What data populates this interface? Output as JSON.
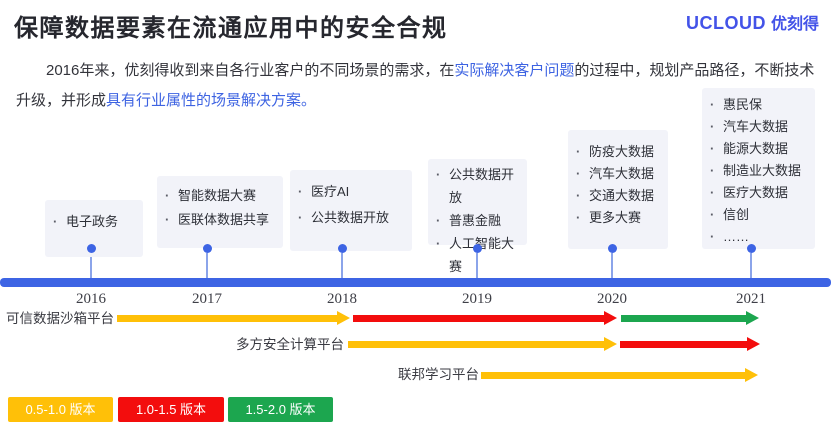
{
  "slide": {
    "title": "保障数据要素在流通应用中的安全合规",
    "logo": {
      "brand": "UCLOUD",
      "brand_cn": "优刻得"
    }
  },
  "intro": {
    "parts": [
      {
        "text": "2016年来，优刻得收到来自各行业客户的不同场景的需求，在",
        "highlight": false
      },
      {
        "text": "实际解决客户问题",
        "highlight": true
      },
      {
        "text": "的过程中，规划产品路径，不断技术升级，并形成",
        "highlight": false
      },
      {
        "text": "具有行业属性的场景解决方案。",
        "highlight": true
      }
    ]
  },
  "timeline": {
    "years": [
      {
        "year": "2016",
        "items": [
          "电子政务"
        ]
      },
      {
        "year": "2017",
        "items": [
          "智能数据大赛",
          "医联体数据共享"
        ]
      },
      {
        "year": "2018",
        "items": [
          "医疗AI",
          "公共数据开放"
        ]
      },
      {
        "year": "2019",
        "items": [
          "公共数据开放",
          "普惠金融",
          "人工智能大赛"
        ]
      },
      {
        "year": "2020",
        "items": [
          "防疫大数据",
          "汽车大数据",
          "交通大数据",
          "更多大赛"
        ]
      },
      {
        "year": "2021",
        "items": [
          "惠民保",
          "汽车大数据",
          "能源大数据",
          "制造业大数据",
          "医疗大数据",
          "信创",
          "……"
        ]
      }
    ]
  },
  "platforms": [
    {
      "label": "可信数据沙箱平台",
      "segments": [
        {
          "version": "0.5-1.0",
          "from": "2016",
          "to": "2018"
        },
        {
          "version": "1.0-1.5",
          "from": "2018",
          "to": "2020"
        },
        {
          "version": "1.5-2.0",
          "from": "2020",
          "to": "2021"
        }
      ]
    },
    {
      "label": "多方安全计算平台",
      "segments": [
        {
          "version": "0.5-1.0",
          "from": "2018",
          "to": "2020"
        },
        {
          "version": "1.0-1.5",
          "from": "2020",
          "to": "2021"
        }
      ]
    },
    {
      "label": "联邦学习平台",
      "segments": [
        {
          "version": "0.5-1.0",
          "from": "2019",
          "to": "2021"
        }
      ]
    }
  ],
  "legend": [
    {
      "label": "0.5-1.0 版本",
      "color": "#FFC008"
    },
    {
      "label": "1.0-1.5 版本",
      "color": "#F30D0D"
    },
    {
      "label": "1.5-2.0 版本",
      "color": "#1CA64F"
    }
  ],
  "colors": {
    "accent_blue": "#3D64E4",
    "stem_blue": "#8BA4EA",
    "box_bg": "#F2F3F9",
    "highlight_text": "#3D63E2",
    "logo_blue": "#4353E8",
    "v1": "#FFC008",
    "v2": "#F30D0D",
    "v3": "#1CA64F"
  }
}
